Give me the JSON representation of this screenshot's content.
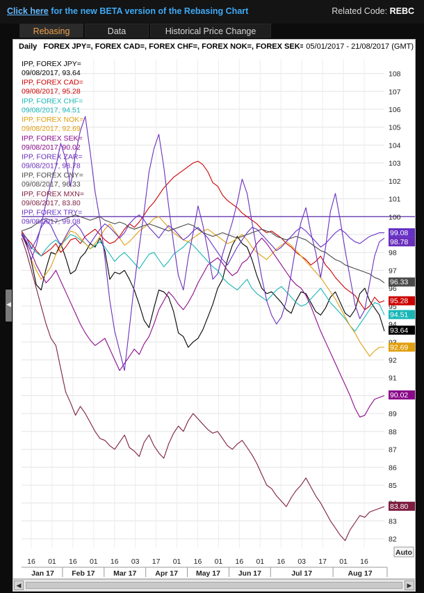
{
  "header": {
    "beta_link_prefix": "Click here",
    "beta_link_text": " for the new BETA version of the Rebasing Chart",
    "related_label": "Related Code: ",
    "related_code": "REBC"
  },
  "tabs": [
    {
      "label": "Rebasing",
      "active": true
    },
    {
      "label": "Data",
      "active": false
    },
    {
      "label": "Historical Price Change",
      "active": false
    }
  ],
  "chart_header": {
    "frequency": "Daily",
    "instruments": "FOREX JPY=, FOREX CAD=, FOREX CHF=, FOREX NOK=, FOREX SEK=, F",
    "date_range": "05/01/2017 - 21/08/2017 (GMT)"
  },
  "auto_button": "Auto",
  "chart_data": {
    "type": "line",
    "y_ticks": [
      82,
      83,
      84,
      85,
      86,
      87,
      88,
      89,
      90,
      91,
      92,
      93,
      94,
      95,
      96,
      97,
      98,
      99,
      100,
      101,
      102,
      103,
      104,
      105,
      106,
      107,
      108
    ],
    "ylim": [
      81.5,
      108.8
    ],
    "baseline": 100,
    "x_tick_labels": [
      "16",
      "01",
      "16",
      "01",
      "16",
      "03",
      "17",
      "01",
      "16",
      "01",
      "16",
      "01",
      "16",
      "03",
      "17",
      "01",
      "16"
    ],
    "month_labels": [
      "Jan 17",
      "Feb 17",
      "Mar 17",
      "Apr 17",
      "May 17",
      "Jun 17",
      "Jul 17",
      "Aug 17"
    ],
    "grid": true,
    "legend_position": "top-left",
    "series": [
      {
        "name": "IPP, FOREX JPY=",
        "color": "#000000",
        "last_date": "09/08/2017",
        "last_value": 93.64,
        "values": [
          99.0,
          98.5,
          97.5,
          96.2,
          95.9,
          97.1,
          98.0,
          97.9,
          98.5,
          97.7,
          96.8,
          97.0,
          97.7,
          98.0,
          98.5,
          98.3,
          98.8,
          98.1,
          96.5,
          96.9,
          96.8,
          97.0,
          96.5,
          95.9,
          95.1,
          94.2,
          93.8,
          94.9,
          95.9,
          95.8,
          95.5,
          94.7,
          93.5,
          93.3,
          92.7,
          93.0,
          93.2,
          93.7,
          94.4,
          95.1,
          96.0,
          96.5,
          97.6,
          98.4,
          98.9,
          98.5,
          98.3,
          97.6,
          96.7,
          96.0,
          95.7,
          95.8,
          95.5,
          95.2,
          94.8,
          94.6,
          95.3,
          95.8,
          95.7,
          95.2,
          94.7,
          94.5,
          94.9,
          95.5,
          95.8,
          95.2,
          94.6,
          94.4,
          94.8,
          95.7,
          96.0,
          95.3,
          94.9,
          94.5,
          93.6
        ]
      },
      {
        "name": "IPP, FOREX CAD=",
        "color": "#cc0000",
        "last_date": "09/08/2017",
        "last_value": 95.28,
        "values": [
          99.2,
          98.8,
          98.5,
          98.1,
          97.8,
          98.0,
          98.2,
          98.5,
          98.0,
          98.3,
          98.7,
          98.8,
          98.5,
          98.9,
          99.1,
          99.3,
          99.0,
          98.7,
          98.5,
          98.6,
          98.9,
          99.3,
          99.6,
          99.4,
          99.7,
          100.1,
          100.5,
          100.8,
          101.2,
          101.6,
          101.9,
          102.2,
          102.4,
          102.6,
          102.8,
          103.0,
          103.1,
          102.9,
          102.5,
          101.9,
          101.7,
          101.2,
          100.9,
          100.7,
          100.5,
          100.2,
          100.0,
          99.8,
          99.6,
          99.3,
          99.1,
          99.2,
          99.0,
          98.8,
          98.5,
          98.3,
          98.0,
          97.8,
          97.6,
          97.3,
          97.5,
          97.8,
          97.3,
          97.0,
          96.6,
          96.3,
          96.0,
          95.8,
          95.6,
          95.2,
          94.8,
          95.0,
          95.5,
          95.2,
          95.3
        ]
      },
      {
        "name": "IPP, FOREX CHF=",
        "color": "#1ab6b6",
        "last_date": "09/08/2017",
        "last_value": 94.51,
        "values": [
          99.1,
          98.8,
          98.3,
          98.0,
          97.8,
          98.2,
          98.5,
          98.7,
          98.4,
          98.7,
          99.0,
          98.9,
          98.7,
          98.5,
          98.2,
          98.4,
          98.6,
          98.3,
          97.9,
          97.5,
          97.8,
          98.0,
          97.7,
          97.4,
          97.1,
          97.5,
          97.9,
          98.0,
          97.6,
          97.2,
          97.5,
          97.9,
          98.1,
          98.3,
          98.6,
          98.4,
          98.1,
          97.8,
          97.5,
          97.2,
          97.0,
          96.6,
          96.3,
          96.1,
          95.9,
          96.2,
          96.5,
          96.0,
          95.7,
          95.5,
          95.3,
          95.6,
          95.9,
          96.1,
          95.8,
          95.5,
          95.2,
          95.0,
          95.1,
          95.4,
          95.7,
          96.0,
          95.6,
          95.2,
          94.9,
          94.6,
          94.3,
          93.9,
          93.6,
          94.0,
          94.4,
          94.8,
          95.2,
          95.1,
          94.5
        ]
      },
      {
        "name": "IPP, FOREX NOK=",
        "color": "#e0a010",
        "last_date": "09/08/2017",
        "last_value": 92.69,
        "values": [
          99.0,
          98.4,
          97.6,
          97.0,
          96.5,
          96.8,
          97.2,
          97.9,
          98.3,
          98.8,
          99.2,
          99.1,
          98.8,
          98.5,
          98.2,
          98.5,
          98.9,
          99.3,
          99.6,
          99.2,
          98.8,
          98.4,
          98.6,
          98.9,
          99.2,
          99.4,
          99.6,
          99.9,
          100.0,
          99.7,
          99.4,
          99.1,
          98.9,
          98.7,
          98.6,
          98.8,
          99.0,
          99.2,
          99.3,
          99.1,
          98.9,
          98.7,
          98.5,
          98.6,
          98.8,
          99.0,
          98.7,
          98.3,
          98.0,
          97.8,
          97.6,
          97.9,
          98.2,
          98.4,
          98.6,
          98.4,
          98.1,
          97.8,
          97.5,
          97.2,
          96.9,
          96.6,
          96.2,
          95.8,
          95.4,
          94.9,
          94.4,
          93.9,
          93.5,
          93.0,
          92.6,
          92.2,
          92.5,
          92.7,
          92.7
        ]
      },
      {
        "name": "IPP, FOREX SEK=",
        "color": "#8b0a8b",
        "last_date": "09/08/2017",
        "last_value": 90.02,
        "values": [
          99.1,
          98.6,
          98.0,
          97.3,
          96.8,
          96.3,
          96.6,
          97.0,
          96.4,
          95.8,
          95.2,
          94.6,
          94.0,
          93.5,
          93.1,
          92.8,
          93.0,
          93.2,
          92.6,
          92.0,
          91.4,
          91.8,
          92.2,
          92.6,
          92.3,
          92.9,
          93.3,
          94.0,
          94.8,
          95.3,
          95.8,
          95.5,
          95.1,
          94.8,
          95.2,
          95.7,
          96.3,
          96.8,
          97.3,
          97.5,
          97.7,
          97.4,
          97.0,
          96.7,
          96.9,
          97.4,
          97.6,
          98.0,
          98.5,
          98.8,
          98.5,
          98.1,
          97.7,
          97.3,
          96.9,
          96.5,
          96.2,
          96.0,
          95.6,
          95.0,
          94.3,
          93.6,
          93.0,
          92.4,
          91.8,
          91.2,
          90.6,
          90.0,
          89.3,
          88.8,
          88.9,
          89.4,
          89.8,
          89.9,
          90.0
        ]
      },
      {
        "name": "IPP, FOREX ZAR=",
        "color": "#6a2ebd",
        "last_date": "09/08/2017",
        "last_value": 98.78,
        "values": [
          99.0,
          98.4,
          97.6,
          98.4,
          99.5,
          100.8,
          101.9,
          102.8,
          104.1,
          103.2,
          101.7,
          103.5,
          104.8,
          105.6,
          103.6,
          101.4,
          99.8,
          97.7,
          95.3,
          93.6,
          92.5,
          91.4,
          93.8,
          96.2,
          98.3,
          100.3,
          102.5,
          103.8,
          104.6,
          102.8,
          100.6,
          98.5,
          96.7,
          95.9,
          97.7,
          99.1,
          100.6,
          99.5,
          98.1,
          96.5,
          96.8,
          97.9,
          98.8,
          99.7,
          100.8,
          102.1,
          101.3,
          99.7,
          98.1,
          96.6,
          95.3,
          94.5,
          94.0,
          94.4,
          95.3,
          96.8,
          98.4,
          99.7,
          100.5,
          99.1,
          98.0,
          96.6,
          98.3,
          100.3,
          101.3,
          99.8,
          98.1,
          96.6,
          95.1,
          94.3,
          94.8,
          96.3,
          97.8,
          98.6,
          98.8
        ]
      },
      {
        "name": "IPP, FOREX CNY=",
        "color": "#4a4a4a",
        "last_date": "09/08/2017",
        "last_value": 96.33,
        "values": [
          99.2,
          99.3,
          99.4,
          99.6,
          99.8,
          99.9,
          99.8,
          99.7,
          99.8,
          99.9,
          100.0,
          100.1,
          100.0,
          99.9,
          99.8,
          99.9,
          100.0,
          99.8,
          99.7,
          99.6,
          99.7,
          99.6,
          99.4,
          99.3,
          99.4,
          99.5,
          99.6,
          99.5,
          99.4,
          99.3,
          99.2,
          99.3,
          99.4,
          99.5,
          99.6,
          99.5,
          99.3,
          99.1,
          99.0,
          98.9,
          99.0,
          99.1,
          99.0,
          98.9,
          98.8,
          98.9,
          99.0,
          99.1,
          99.2,
          99.3,
          99.2,
          99.1,
          98.9,
          98.8,
          98.7,
          98.8,
          98.9,
          98.8,
          98.7,
          98.5,
          98.3,
          98.1,
          98.0,
          97.8,
          97.6,
          97.5,
          97.3,
          97.2,
          97.1,
          97.0,
          96.9,
          96.8,
          96.6,
          96.5,
          96.3
        ]
      },
      {
        "name": "IPP, FOREX MXN=",
        "color": "#7d1d3f",
        "last_date": "09/08/2017",
        "last_value": 83.8,
        "values": [
          98.8,
          98.0,
          97.0,
          96.0,
          95.0,
          94.0,
          93.2,
          92.8,
          91.5,
          90.2,
          89.6,
          88.9,
          89.4,
          89.0,
          88.5,
          88.0,
          87.6,
          87.5,
          87.2,
          87.0,
          87.4,
          87.8,
          87.1,
          86.9,
          86.6,
          87.4,
          87.8,
          87.2,
          86.8,
          86.5,
          87.3,
          87.9,
          88.3,
          88.0,
          88.6,
          89.0,
          88.7,
          88.4,
          88.1,
          87.9,
          88.0,
          87.6,
          87.2,
          87.0,
          87.3,
          87.5,
          87.1,
          86.7,
          86.2,
          85.6,
          85.0,
          84.8,
          84.4,
          84.1,
          83.8,
          84.3,
          84.7,
          85.0,
          85.4,
          84.9,
          84.4,
          84.0,
          83.5,
          83.0,
          82.6,
          82.2,
          81.9,
          82.5,
          82.9,
          83.3,
          83.2,
          83.5,
          83.6,
          83.7,
          83.8
        ]
      },
      {
        "name": "IPP, FOREX TRY=",
        "color": "#6630c4",
        "last_date": "09/08/2017",
        "last_value": 99.08,
        "values": [
          99.0,
          98.8,
          98.2,
          98.7,
          99.4,
          99.8,
          99.5,
          98.9,
          98.4,
          98.9,
          99.4,
          99.6,
          99.3,
          98.8,
          98.5,
          98.9,
          99.3,
          99.6,
          99.4,
          99.1,
          98.8,
          99.1,
          99.6,
          99.9,
          100.1,
          99.8,
          99.4,
          99.1,
          98.8,
          99.2,
          99.5,
          99.3,
          99.0,
          98.7,
          98.9,
          99.2,
          99.4,
          99.1,
          98.8,
          98.4,
          98.0,
          97.6,
          97.3,
          97.8,
          98.3,
          98.7,
          99.1,
          99.4,
          99.3,
          99.0,
          98.7,
          98.4,
          98.1,
          98.3,
          98.6,
          98.9,
          99.2,
          99.4,
          99.2,
          98.9,
          98.6,
          98.3,
          98.5,
          98.8,
          99.1,
          99.3,
          99.1,
          98.8,
          98.6,
          98.5,
          98.7,
          98.9,
          99.0,
          99.1,
          99.1
        ]
      }
    ]
  }
}
